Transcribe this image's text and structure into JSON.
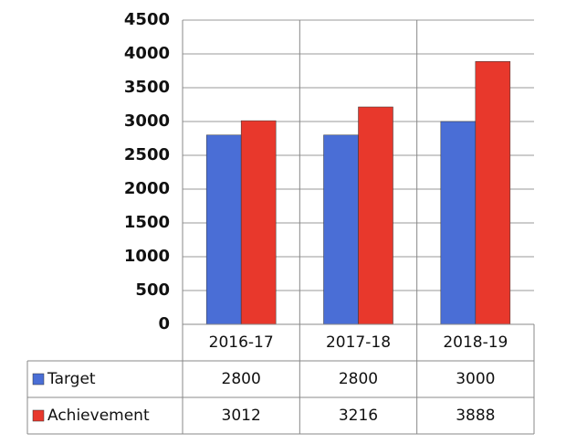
{
  "chart_data": {
    "type": "bar",
    "categories": [
      "2016-17",
      "2017-18",
      "2018-19"
    ],
    "series": [
      {
        "name": "Target",
        "color": "#4a6ed6",
        "values": [
          2800,
          2800,
          3000
        ]
      },
      {
        "name": "Achievement",
        "color": "#e8382c",
        "values": [
          3012,
          3216,
          3888
        ]
      }
    ],
    "ylim": [
      0,
      4500
    ],
    "yticks": [
      0,
      500,
      1000,
      1500,
      2000,
      2500,
      3000,
      3500,
      4000,
      4500
    ],
    "grid": true
  }
}
